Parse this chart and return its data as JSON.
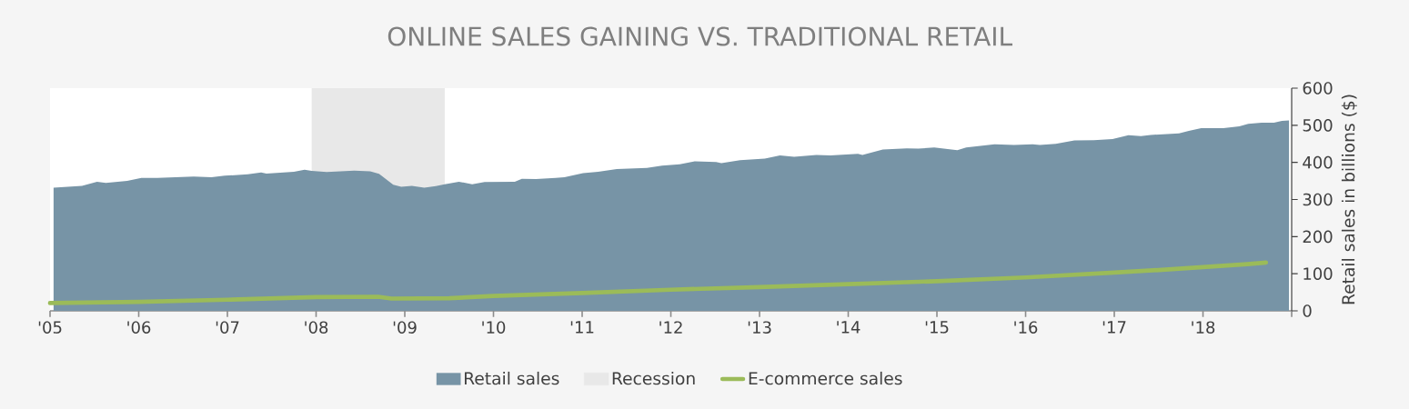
{
  "chart_data": {
    "type": "area",
    "title": "ONLINE SALES GAINING VS. TRADITIONAL RETAIL",
    "ylabel": "Retail sales in billions ($)",
    "xlim": [
      2005,
      2019
    ],
    "xticks": [
      {
        "value": 2005,
        "label": "'05"
      },
      {
        "value": 2006,
        "label": "'06"
      },
      {
        "value": 2007,
        "label": "'07"
      },
      {
        "value": 2008,
        "label": "'08"
      },
      {
        "value": 2009,
        "label": "'09"
      },
      {
        "value": 2010,
        "label": "'10"
      },
      {
        "value": 2011,
        "label": "'11"
      },
      {
        "value": 2012,
        "label": "'12"
      },
      {
        "value": 2013,
        "label": "'13"
      },
      {
        "value": 2014,
        "label": "'14"
      },
      {
        "value": 2015,
        "label": "'15"
      },
      {
        "value": 2016,
        "label": "'16"
      },
      {
        "value": 2017,
        "label": "'17"
      },
      {
        "value": 2018,
        "label": "'18"
      },
      {
        "value": 2019,
        "label": null
      }
    ],
    "ylim": [
      0,
      600
    ],
    "yticks": [
      0,
      100,
      200,
      300,
      400,
      500,
      600
    ],
    "legend": "bottom",
    "bands": [
      {
        "axis": "x",
        "from": 2007.95,
        "to": 2009.45,
        "label": "Recession",
        "color": "#e8e8e8"
      }
    ],
    "series": [
      {
        "name": "Retail sales",
        "type": "area",
        "color": "#7794a6",
        "x": [
          2005.04,
          2005.36,
          2005.53,
          2005.63,
          2005.87,
          2006.03,
          2006.21,
          2006.62,
          2006.82,
          2006.97,
          2007.23,
          2007.38,
          2007.44,
          2007.75,
          2007.87,
          2007.95,
          2008.12,
          2008.43,
          2008.61,
          2008.71,
          2008.87,
          2008.96,
          2009.08,
          2009.22,
          2009.35,
          2009.45,
          2009.61,
          2009.76,
          2009.9,
          2010.24,
          2010.32,
          2010.48,
          2010.7,
          2010.8,
          2011.01,
          2011.18,
          2011.39,
          2011.73,
          2011.9,
          2012.1,
          2012.27,
          2012.51,
          2012.57,
          2012.78,
          2013.06,
          2013.23,
          2013.39,
          2013.64,
          2013.8,
          2014.11,
          2014.16,
          2014.39,
          2014.66,
          2014.79,
          2014.97,
          2015.23,
          2015.33,
          2015.65,
          2015.87,
          2016.08,
          2016.16,
          2016.34,
          2016.55,
          2016.77,
          2016.98,
          2017.16,
          2017.3,
          2017.41,
          2017.73,
          2017.84,
          2017.98,
          2018.23,
          2018.41,
          2018.51,
          2018.66,
          2018.8,
          2018.89,
          2018.97
        ],
        "values": [
          332,
          337,
          348,
          345,
          350,
          358,
          358,
          362,
          360,
          364,
          368,
          373,
          370,
          375,
          380,
          377,
          374,
          378,
          376,
          369,
          340,
          334,
          337,
          332,
          336,
          341,
          348,
          341,
          347,
          348,
          356,
          355,
          358,
          360,
          371,
          375,
          382,
          385,
          391,
          395,
          403,
          401,
          398,
          406,
          410,
          419,
          415,
          420,
          419,
          423,
          420,
          435,
          438,
          437,
          440,
          433,
          440,
          449,
          447,
          449,
          447,
          450,
          459,
          460,
          463,
          473,
          471,
          474,
          478,
          485,
          492,
          492,
          497,
          504,
          507,
          507,
          512,
          513
        ]
      },
      {
        "name": "E-commerce sales",
        "type": "line",
        "color": "#9bbb59",
        "x": [
          2005.0,
          2006.0,
          2007.0,
          2008.0,
          2008.7,
          2008.85,
          2009.5,
          2010.0,
          2011.0,
          2012.0,
          2013.0,
          2014.0,
          2015.0,
          2016.0,
          2017.0,
          2017.5,
          2018.0,
          2018.5,
          2018.71
        ],
        "values": [
          21,
          24,
          30,
          37,
          38,
          33,
          34,
          40,
          48,
          57,
          64,
          72,
          80,
          90,
          103,
          110,
          118,
          126,
          130
        ]
      }
    ]
  }
}
